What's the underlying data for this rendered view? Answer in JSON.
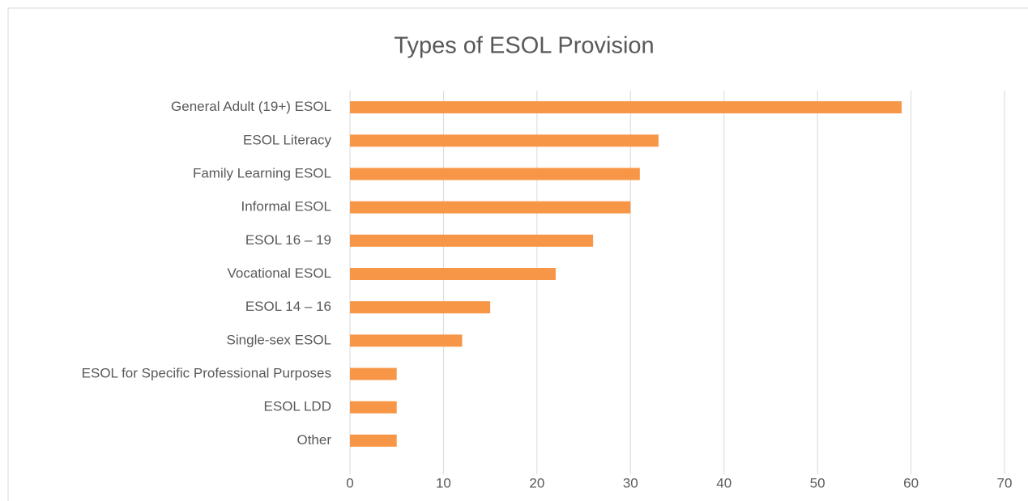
{
  "chart_data": {
    "type": "bar",
    "orientation": "horizontal",
    "title": "Types of ESOL Provision",
    "categories": [
      "General Adult (19+) ESOL",
      "ESOL Literacy",
      "Family Learning ESOL",
      "Informal ESOL",
      "ESOL 16 – 19",
      "Vocational ESOL",
      "ESOL 14 – 16",
      "Single-sex ESOL",
      "ESOL for Specific Professional Purposes",
      "ESOL LDD",
      "Other"
    ],
    "values": [
      59,
      33,
      31,
      30,
      26,
      22,
      15,
      12,
      5,
      5,
      5
    ],
    "color": "#f79646",
    "xlim": [
      0,
      70
    ],
    "xticks": [
      0,
      10,
      20,
      30,
      40,
      50,
      60,
      70
    ],
    "grid": true
  }
}
